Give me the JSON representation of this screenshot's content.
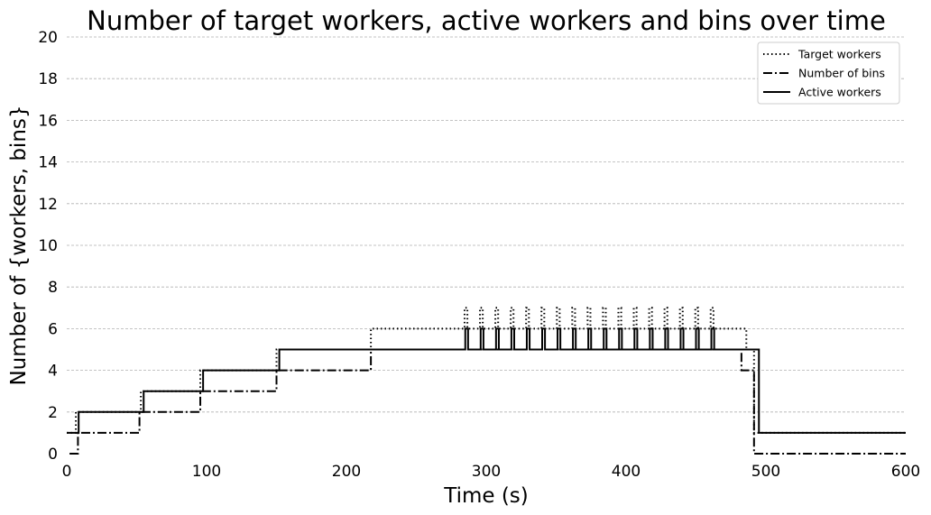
{
  "chart_data": {
    "type": "line",
    "title": "Number of target workers, active workers and bins over time",
    "xlabel": "Time (s)",
    "ylabel": "Number of {workers, bins}",
    "xlim": [
      0,
      600
    ],
    "ylim": [
      0,
      20
    ],
    "xticks": [
      0,
      100,
      200,
      300,
      400,
      500,
      600
    ],
    "yticks": [
      0,
      2,
      4,
      6,
      8,
      10,
      12,
      14,
      16,
      18,
      20
    ],
    "grid": "y-dashed",
    "legend_position": "top-right",
    "line_color": "#000000",
    "step": "post",
    "series": [
      {
        "name": "Target workers",
        "style": "dotted",
        "x": [
          0,
          6.5,
          53,
          95.5,
          150,
          217.5,
          284.5,
          286.5,
          295.5,
          297.5,
          306.5,
          308.5,
          317.5,
          319.5,
          328.5,
          330.5,
          339.5,
          341.5,
          350.5,
          352.5,
          361.5,
          363.5,
          372.5,
          374.5,
          383.5,
          385.5,
          394.5,
          396.5,
          405.5,
          407.5,
          416.5,
          418.5,
          427.5,
          429.5,
          438.5,
          440.5,
          449.5,
          451.5,
          460.5,
          462.5,
          486,
          491.5,
          600
        ],
        "y": [
          1,
          2,
          3,
          4,
          5,
          6,
          7,
          6,
          7,
          6,
          7,
          6,
          7,
          6,
          7,
          6,
          7,
          6,
          7,
          6,
          7,
          6,
          7,
          6,
          7,
          6,
          7,
          6,
          7,
          6,
          7,
          6,
          7,
          6,
          7,
          6,
          7,
          6,
          7,
          6,
          5,
          1,
          1
        ]
      },
      {
        "name": "Number of bins",
        "style": "dashdot",
        "x": [
          2,
          8,
          52,
          95.5,
          150,
          217.5,
          482.5,
          491.5,
          600
        ],
        "y": [
          0,
          1,
          2,
          3,
          4,
          5,
          4,
          0,
          0
        ]
      },
      {
        "name": "Active workers",
        "style": "solid",
        "x": [
          0,
          8.5,
          55,
          97.5,
          152,
          285,
          287,
          296,
          298,
          307,
          309,
          318,
          320,
          329,
          331,
          340,
          342,
          351,
          353,
          362,
          364,
          373,
          375,
          384,
          386,
          395,
          397,
          406,
          408,
          417,
          419,
          428,
          430,
          439,
          441,
          450,
          452,
          461,
          463,
          495,
          600
        ],
        "y": [
          1,
          2,
          3,
          4,
          5,
          6,
          5,
          6,
          5,
          6,
          5,
          6,
          5,
          6,
          5,
          6,
          5,
          6,
          5,
          6,
          5,
          6,
          5,
          6,
          5,
          6,
          5,
          6,
          5,
          6,
          5,
          6,
          5,
          6,
          5,
          6,
          5,
          6,
          5,
          1,
          1
        ]
      }
    ]
  }
}
